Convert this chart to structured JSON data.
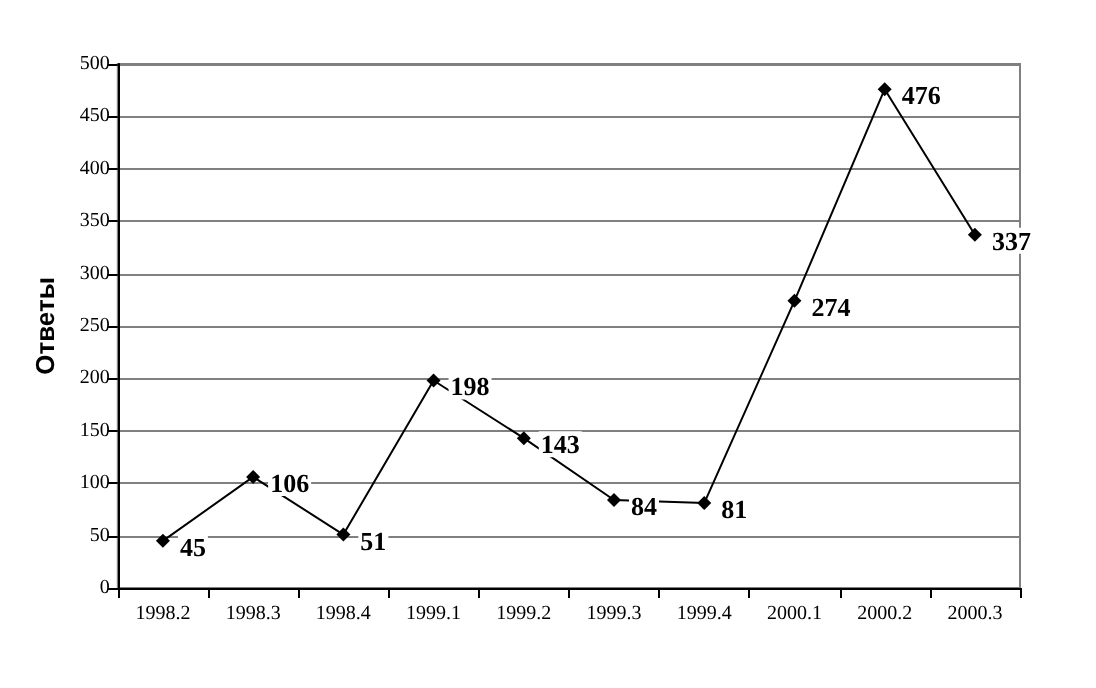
{
  "chart_data": {
    "type": "line",
    "ylabel": "Ответы",
    "categories": [
      "1998.2",
      "1998.3",
      "1998.4",
      "1999.1",
      "1999.2",
      "1999.3",
      "1999.4",
      "2000.1",
      "2000.2",
      "2000.3"
    ],
    "values": [
      45,
      106,
      51,
      198,
      143,
      84,
      81,
      274,
      476,
      337
    ],
    "color": "#000000",
    "ylim": [
      0,
      500
    ],
    "yticks": [
      0,
      50,
      100,
      150,
      200,
      250,
      300,
      350,
      400,
      450,
      500
    ],
    "grid": "y",
    "marker": "diamond",
    "line_style": "solid",
    "data_labels": true
  }
}
